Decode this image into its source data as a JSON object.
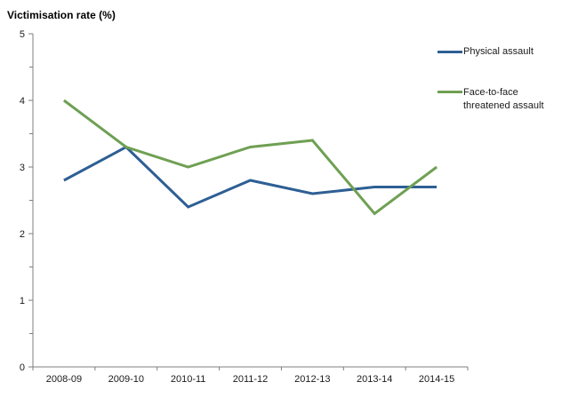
{
  "chart_data": {
    "type": "line",
    "title": "Victimisation rate (%)",
    "categories": [
      "2008-09",
      "2009-10",
      "2010-11",
      "2011-12",
      "2012-13",
      "2013-14",
      "2014-15"
    ],
    "series": [
      {
        "name": "Physical assault",
        "color": "#2E5F94",
        "values": [
          2.8,
          3.3,
          2.4,
          2.8,
          2.6,
          2.7,
          2.7
        ]
      },
      {
        "name": "Face-to-face threatened assault",
        "color": "#6FA053",
        "values": [
          4.0,
          3.3,
          3.0,
          3.3,
          3.4,
          2.3,
          3.0
        ]
      }
    ],
    "ylim": [
      0,
      5
    ],
    "y_major_ticks": [
      0,
      1,
      2,
      3,
      4,
      5
    ],
    "y_minor_step": 0.5,
    "xlabel": "",
    "ylabel": "Victimisation rate (%)",
    "grid": false,
    "legend_position": "top-right",
    "axis_color": "#7F7F7F",
    "text_color": "#1a1a1a"
  }
}
